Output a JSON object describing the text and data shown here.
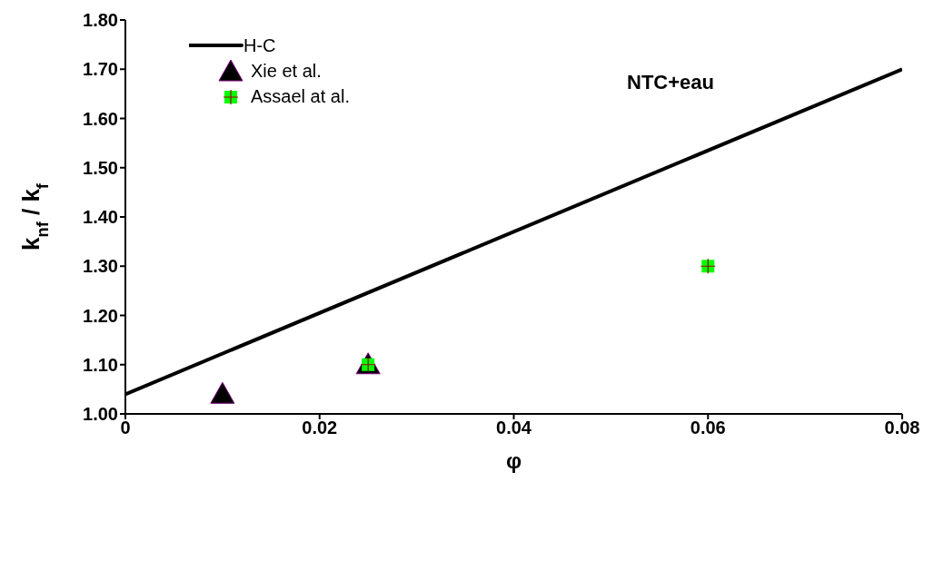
{
  "chart_data": {
    "type": "scatter",
    "title": "NTC+eau",
    "xlabel": "φ",
    "ylabel": "k$_{nf}$ / k$_{f}$",
    "xlim": [
      0,
      0.08
    ],
    "xticks": [
      0,
      0.02,
      0.04,
      0.06,
      0.08
    ],
    "ylim": [
      1,
      1.8
    ],
    "yticks": [
      {
        "value": 1,
        "label": "1.00"
      },
      {
        "value": 1.1,
        "label": "1.10"
      },
      {
        "value": 1.2,
        "label": "1.20"
      },
      {
        "value": 1.3,
        "label": "1.30"
      },
      {
        "value": 1.4,
        "label": "1.40"
      },
      {
        "value": 1.5,
        "label": "1.50"
      },
      {
        "value": 1.6,
        "label": "1.60"
      },
      {
        "value": 1.7,
        "label": "1.70"
      },
      {
        "value": 1.8,
        "label": "1.80"
      }
    ],
    "grid": false,
    "legend": "top left",
    "series": [
      {
        "name": "H-C",
        "type": "line",
        "color": "#000000",
        "marker": "none",
        "line_style": "solid",
        "x": [
          0,
          0.08
        ],
        "values": [
          1.04,
          1.7
        ]
      },
      {
        "name": "Xie et al.",
        "color": "#000000",
        "marker": "triangle",
        "x": [
          0.01,
          0.025
        ],
        "values": [
          1.04,
          1.1
        ]
      },
      {
        "name": "Assael at al.",
        "color": "#00ff00",
        "marker": "square",
        "x": [
          0.025,
          0.06
        ],
        "values": [
          1.1,
          1.3
        ]
      }
    ]
  }
}
